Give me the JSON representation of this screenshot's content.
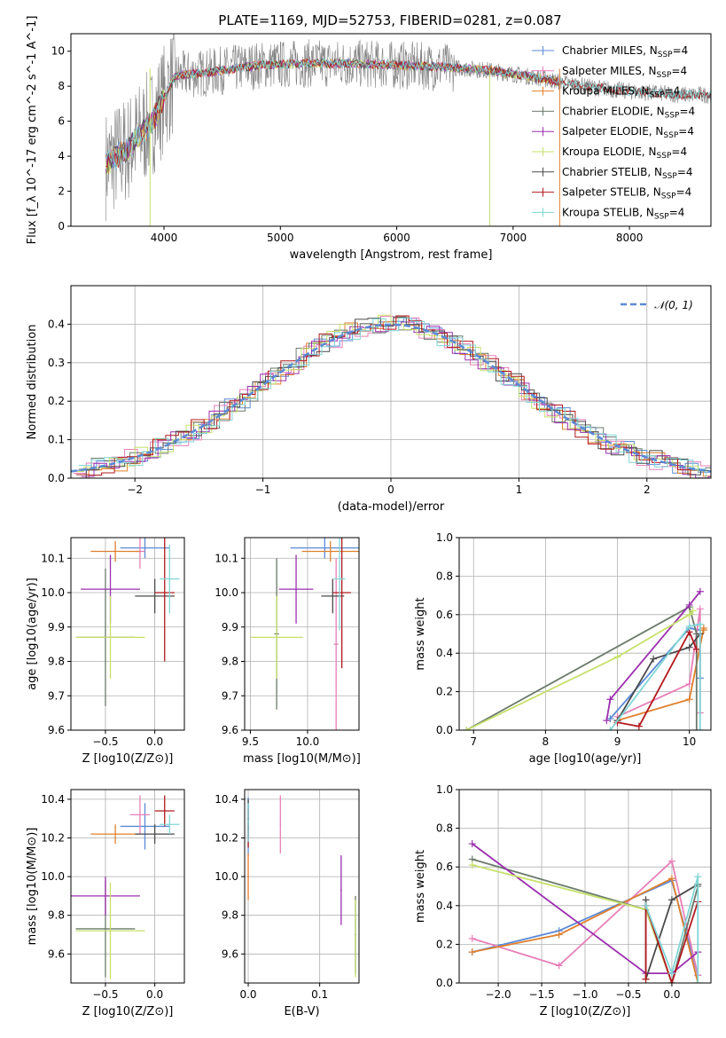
{
  "title": "PLATE=1169, MJD=52753, FIBERID=0281, z=0.087",
  "legend_labels": [
    "Chabrier MILES, N_SSP=4",
    "Salpeter MILES, N_SSP=4",
    "Kroupa MILES, N_SSP=4",
    "Chabrier ELODIE, N_SSP=4",
    "Salpeter ELODIE, N_SSP=4",
    "Kroupa ELODIE, N_SSP=4",
    "Chabrier STELIB, N_SSP=4",
    "Salpeter STELIB, N_SSP=4",
    "Kroupa STELIB, N_SSP=4"
  ],
  "colors": [
    "#5b8ad6",
    "#e87fb8",
    "#e0802f",
    "#6b7a6b",
    "#9b2fae",
    "#c6e06a",
    "#4a4a4a",
    "#b2191e",
    "#7fd6d6"
  ],
  "chart_data": [
    {
      "id": "spectrum",
      "type": "line",
      "xlabel": "wavelength [Angstrom, rest frame]",
      "ylabel": "Flux [f_λ 10^-17 erg cm^-2 s^-1 A^-1]",
      "xlim": [
        3200,
        8700
      ],
      "ylim": [
        0,
        11
      ],
      "xticks": [
        "4000",
        "5000",
        "6000",
        "7000",
        "8000"
      ],
      "yticks": [
        "0",
        "2",
        "4",
        "6",
        "8",
        "10"
      ],
      "continuum": {
        "x": [
          3500,
          3700,
          3900,
          4100,
          4400,
          4800,
          5200,
          5600,
          6000,
          6400,
          6800,
          7200,
          7600,
          8000,
          8500
        ],
        "y": [
          3.5,
          4.5,
          6.0,
          8.6,
          8.8,
          9.2,
          9.3,
          9.3,
          9.2,
          9.1,
          8.9,
          8.5,
          8.0,
          7.7,
          7.5
        ]
      }
    },
    {
      "id": "residuals",
      "type": "histogram",
      "xlabel": "(data-model)/error",
      "ylabel": "Normed distribution",
      "xlim": [
        -2.5,
        2.5
      ],
      "ylim": [
        0,
        0.5
      ],
      "xticks": [
        "−2",
        "−1",
        "0",
        "1",
        "2"
      ],
      "yticks": [
        "0.0",
        "0.1",
        "0.2",
        "0.3",
        "0.4"
      ],
      "legend": "N(0,1)"
    },
    {
      "id": "age_vs_z",
      "type": "scatter",
      "xlabel": "Z [log10(Z/Z⊙)]",
      "ylabel": "age [log10(age/yr)]",
      "xlim": [
        -0.85,
        0.3
      ],
      "ylim": [
        9.6,
        10.16
      ],
      "xticks": [
        "−0.5",
        "0.0"
      ],
      "yticks": [
        "9.6",
        "9.7",
        "9.8",
        "9.9",
        "10.0",
        "10.1"
      ],
      "points": [
        {
          "x": -0.1,
          "y": 10.13,
          "xerr": 0.25,
          "yerr": 0.03
        },
        {
          "x": -0.15,
          "y": 10.12,
          "xerr": 0.05,
          "yerr": 0.05
        },
        {
          "x": -0.4,
          "y": 10.12,
          "xerr": 0.25,
          "yerr": 0.03
        },
        {
          "x": -0.5,
          "y": 9.87,
          "xerr": 0.3,
          "yerr": 0.2
        },
        {
          "x": -0.45,
          "y": 10.01,
          "xerr": 0.3,
          "yerr": 0.1
        },
        {
          "x": -0.45,
          "y": 9.87,
          "xerr": 0.35,
          "yerr": 0.12
        },
        {
          "x": 0.0,
          "y": 9.99,
          "xerr": 0.2,
          "yerr": 0.05
        },
        {
          "x": 0.1,
          "y": 10.0,
          "xerr": 0.1,
          "yerr": 0.2
        },
        {
          "x": 0.15,
          "y": 10.04,
          "xerr": 0.1,
          "yerr": 0.1
        }
      ]
    },
    {
      "id": "age_vs_mass",
      "type": "scatter",
      "xlabel": "mass [log10(M/M⊙)]",
      "ylabel": "",
      "xlim": [
        9.45,
        10.45
      ],
      "ylim": [
        9.6,
        10.16
      ],
      "xticks": [
        "9.5",
        "10.0"
      ],
      "yticks": [
        "9.6",
        "9.7",
        "9.8",
        "9.9",
        "10.0",
        "10.1"
      ]
    },
    {
      "id": "weight_vs_age",
      "type": "line",
      "xlabel": "age [log10(age/yr)]",
      "ylabel": "mass weight",
      "xlim": [
        6.8,
        10.3
      ],
      "ylim": [
        0,
        1
      ],
      "xticks": [
        "7",
        "8",
        "9",
        "10"
      ],
      "yticks": [
        "0.0",
        "0.2",
        "0.4",
        "0.6",
        "0.8",
        "1.0"
      ],
      "series": [
        {
          "x": [
            8.9,
            10.0,
            10.15,
            10.15
          ],
          "y": [
            0.06,
            0.53,
            0.52,
            0.27
          ]
        },
        {
          "x": [
            9.0,
            10.0,
            10.15,
            10.15
          ],
          "y": [
            0.07,
            0.24,
            0.63,
            0.09
          ]
        },
        {
          "x": [
            9.0,
            10.0,
            10.2,
            10.2
          ],
          "y": [
            0.05,
            0.16,
            0.53,
            0.52
          ]
        },
        {
          "x": [
            6.9,
            10.0,
            10.1,
            10.1
          ],
          "y": [
            0.0,
            0.64,
            0.5,
            0.0
          ]
        },
        {
          "x": [
            8.85,
            8.9,
            10.0,
            10.15
          ],
          "y": [
            0.05,
            0.16,
            0.65,
            0.72
          ]
        },
        {
          "x": [
            6.9,
            9.0,
            10.0,
            10.05
          ],
          "y": [
            0.0,
            0.38,
            0.6,
            0.62
          ]
        },
        {
          "x": [
            9.0,
            9.5,
            10.0,
            10.15
          ],
          "y": [
            0.05,
            0.37,
            0.43,
            0.5
          ]
        },
        {
          "x": [
            9.0,
            9.3,
            10.0,
            10.1
          ],
          "y": [
            0.04,
            0.02,
            0.51,
            0.42
          ]
        },
        {
          "x": [
            8.9,
            10.0,
            10.15,
            10.15
          ],
          "y": [
            0.0,
            0.54,
            0.55,
            0.0
          ]
        }
      ]
    },
    {
      "id": "mass_vs_z",
      "type": "scatter",
      "xlabel": "Z [log10(Z/Z⊙)]",
      "ylabel": "mass [log10(M/M⊙)]",
      "xlim": [
        -0.85,
        0.3
      ],
      "ylim": [
        9.45,
        10.45
      ],
      "xticks": [
        "−0.5",
        "0.0"
      ],
      "yticks": [
        "9.6",
        "9.8",
        "10.0",
        "10.2",
        "10.4"
      ]
    },
    {
      "id": "mass_vs_ebv",
      "type": "scatter",
      "xlabel": "E(B-V)",
      "ylabel": "",
      "xlim": [
        -0.005,
        0.155
      ],
      "ylim": [
        9.45,
        10.45
      ],
      "xticks": [
        "0.0",
        "0.1"
      ],
      "yticks": [
        "9.6",
        "9.8",
        "10.0",
        "10.2",
        "10.4"
      ]
    },
    {
      "id": "weight_vs_z",
      "type": "line",
      "xlabel": "Z [log10(Z/Z⊙)]",
      "ylabel": "mass weight",
      "xlim": [
        -2.45,
        0.45
      ],
      "ylim": [
        0,
        1
      ],
      "xticks": [
        "−2.0",
        "−1.5",
        "−1.0",
        "−0.5",
        "0.0"
      ],
      "yticks": [
        "0.0",
        "0.2",
        "0.4",
        "0.6",
        "0.8",
        "1.0"
      ],
      "series": [
        {
          "x": [
            -2.3,
            -1.3,
            0.0,
            0.3
          ],
          "y": [
            0.16,
            0.27,
            0.53,
            0.04
          ]
        },
        {
          "x": [
            -2.3,
            -1.3,
            0.0,
            0.3
          ],
          "y": [
            0.23,
            0.09,
            0.63,
            0.04
          ]
        },
        {
          "x": [
            -2.3,
            -1.3,
            0.0,
            0.3
          ],
          "y": [
            0.16,
            0.25,
            0.54,
            0.0
          ]
        },
        {
          "x": [
            -2.3,
            -0.3,
            0.0,
            0.3
          ],
          "y": [
            0.64,
            0.38,
            0.0,
            0.5
          ]
        },
        {
          "x": [
            -2.3,
            -0.3,
            0.0,
            0.3
          ],
          "y": [
            0.72,
            0.05,
            0.05,
            0.16
          ]
        },
        {
          "x": [
            -2.3,
            -0.3,
            0.0,
            0.0
          ],
          "y": [
            0.61,
            0.38,
            0.0,
            0.0
          ]
        },
        {
          "x": [
            -0.3,
            -0.3,
            0.0,
            0.3
          ],
          "y": [
            0.43,
            0.02,
            0.43,
            0.51
          ]
        },
        {
          "x": [
            -0.3,
            -0.3,
            0.0,
            0.3
          ],
          "y": [
            0.02,
            0.4,
            0.0,
            0.42
          ]
        },
        {
          "x": [
            -0.3,
            0.0,
            0.3,
            0.3
          ],
          "y": [
            0.4,
            0.05,
            0.55,
            0.0
          ]
        }
      ]
    }
  ]
}
